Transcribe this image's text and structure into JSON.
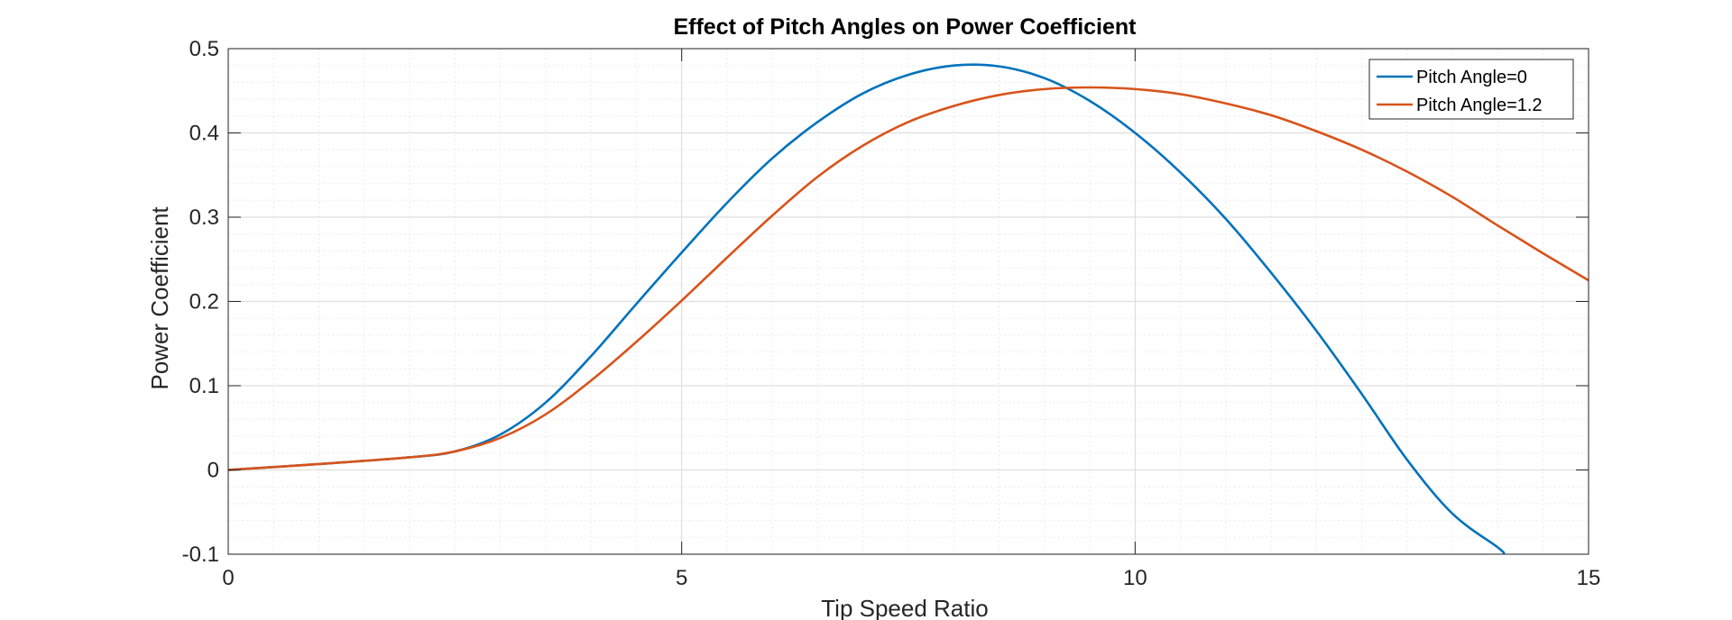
{
  "colors": {
    "series_1": "#0072BD",
    "series_2": "#D95319",
    "grid_major": "#dfdfdf",
    "grid_minor": "#ececec",
    "axes": "#262626"
  },
  "chart_data": {
    "type": "line",
    "title": "Effect of Pitch Angles on Power Coefficient",
    "xlabel": "Tip Speed Ratio",
    "ylabel": "Power Coefficient",
    "xlim": [
      0,
      15
    ],
    "ylim": [
      -0.1,
      0.5
    ],
    "xticks": [
      0,
      5,
      10,
      15
    ],
    "xtick_labels": [
      "0",
      "5",
      "10",
      "15"
    ],
    "yticks": [
      -0.1,
      0,
      0.1,
      0.2,
      0.3,
      0.4,
      0.5
    ],
    "ytick_labels": [
      "-0.1",
      "0",
      "0.1",
      "0.2",
      "0.3",
      "0.4",
      "0.5"
    ],
    "grid": "on (major and minor)",
    "legend_position": "top-right",
    "series": [
      {
        "name": "Pitch Angle=0",
        "color": "#0072BD",
        "x": [
          0,
          1,
          2,
          2.5,
          3,
          3.5,
          4,
          4.5,
          5,
          5.5,
          6,
          6.5,
          7,
          7.5,
          8,
          8.5,
          9,
          9.5,
          10,
          10.5,
          11,
          11.5,
          12,
          12.5,
          13,
          13.5,
          14,
          14.07
        ],
        "y": [
          0,
          0.007,
          0.015,
          0.022,
          0.042,
          0.08,
          0.135,
          0.197,
          0.258,
          0.317,
          0.37,
          0.413,
          0.447,
          0.469,
          0.48,
          0.479,
          0.465,
          0.438,
          0.4,
          0.353,
          0.298,
          0.234,
          0.165,
          0.09,
          0.012,
          -0.052,
          -0.092,
          -0.1
        ]
      },
      {
        "name": "Pitch Angle=1.2",
        "color": "#D95319",
        "x": [
          0,
          1,
          2,
          2.5,
          3,
          3.5,
          4,
          4.5,
          5,
          5.5,
          6,
          6.5,
          7,
          7.5,
          8,
          8.5,
          9,
          9.5,
          10,
          10.5,
          11,
          11.5,
          12,
          12.5,
          13,
          13.5,
          14,
          14.5,
          15
        ],
        "y": [
          0,
          0.007,
          0.015,
          0.022,
          0.038,
          0.066,
          0.106,
          0.152,
          0.201,
          0.252,
          0.302,
          0.348,
          0.385,
          0.413,
          0.432,
          0.445,
          0.452,
          0.454,
          0.452,
          0.446,
          0.435,
          0.421,
          0.402,
          0.38,
          0.354,
          0.324,
          0.29,
          0.257,
          0.225
        ]
      }
    ]
  }
}
